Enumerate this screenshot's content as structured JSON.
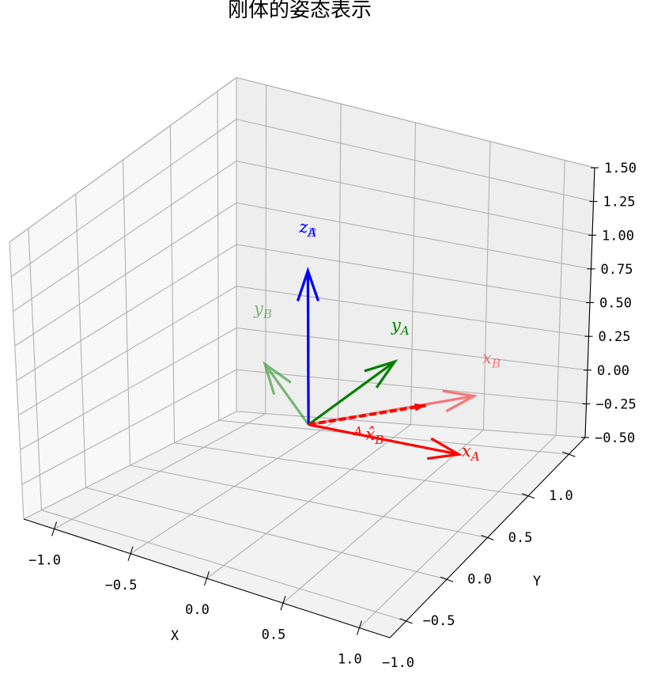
{
  "chart_data": {
    "type": "3d-quiver",
    "title": "刚体的姿态表示",
    "xlabel": "X",
    "ylabel": "Y",
    "xlim": [
      -1.2,
      1.2
    ],
    "ylim": [
      -1.2,
      1.2
    ],
    "zlim": [
      -0.5,
      1.5
    ],
    "x_ticks": [
      "−1.0",
      "−0.5",
      "0.0",
      "0.5",
      "1.0"
    ],
    "y_ticks": [
      "−1.0",
      "−0.5",
      "0.0",
      "0.5",
      "1.0"
    ],
    "z_ticks": [
      "−0.50",
      "−0.25",
      "0.00",
      "0.25",
      "0.50",
      "0.75",
      "1.00",
      "1.25",
      "1.50"
    ],
    "grid": true,
    "origin": [
      0,
      0,
      0
    ],
    "vectors": [
      {
        "name": "x_A",
        "label_base": "x",
        "label_sub": "A",
        "color": "#ff0000",
        "opacity": 1.0,
        "dashed": false,
        "dir": [
          1,
          0,
          0
        ]
      },
      {
        "name": "y_A",
        "label_base": "y",
        "label_sub": "A",
        "color": "#008000",
        "opacity": 1.0,
        "dashed": false,
        "dir": [
          0,
          1,
          0
        ]
      },
      {
        "name": "z_A",
        "label_base": "z",
        "label_sub": "A",
        "color": "#0000ff",
        "opacity": 1.0,
        "dashed": false,
        "dir": [
          0,
          0,
          1
        ]
      },
      {
        "name": "x_B",
        "label_base": "x",
        "label_sub": "B",
        "color": "#ff0000",
        "opacity": 0.5,
        "dashed": false,
        "dir": [
          0.707,
          0.707,
          0
        ]
      },
      {
        "name": "y_B",
        "label_base": "y",
        "label_sub": "B",
        "color": "#008000",
        "opacity": 0.5,
        "dashed": false,
        "dir": [
          -0.707,
          0.707,
          0
        ]
      },
      {
        "name": "z_B",
        "label_base": "z",
        "label_sub": "B",
        "color": "#0000ff",
        "opacity": 0.5,
        "dashed": false,
        "dir": [
          0,
          0,
          1
        ]
      },
      {
        "name": "A_xB_hat",
        "label_pre": "A",
        "label_base": "x̂",
        "label_sub": "B",
        "color": "#ff0000",
        "opacity": 1.0,
        "dashed": true,
        "dir": [
          0.5,
          0.5,
          0
        ]
      }
    ]
  }
}
